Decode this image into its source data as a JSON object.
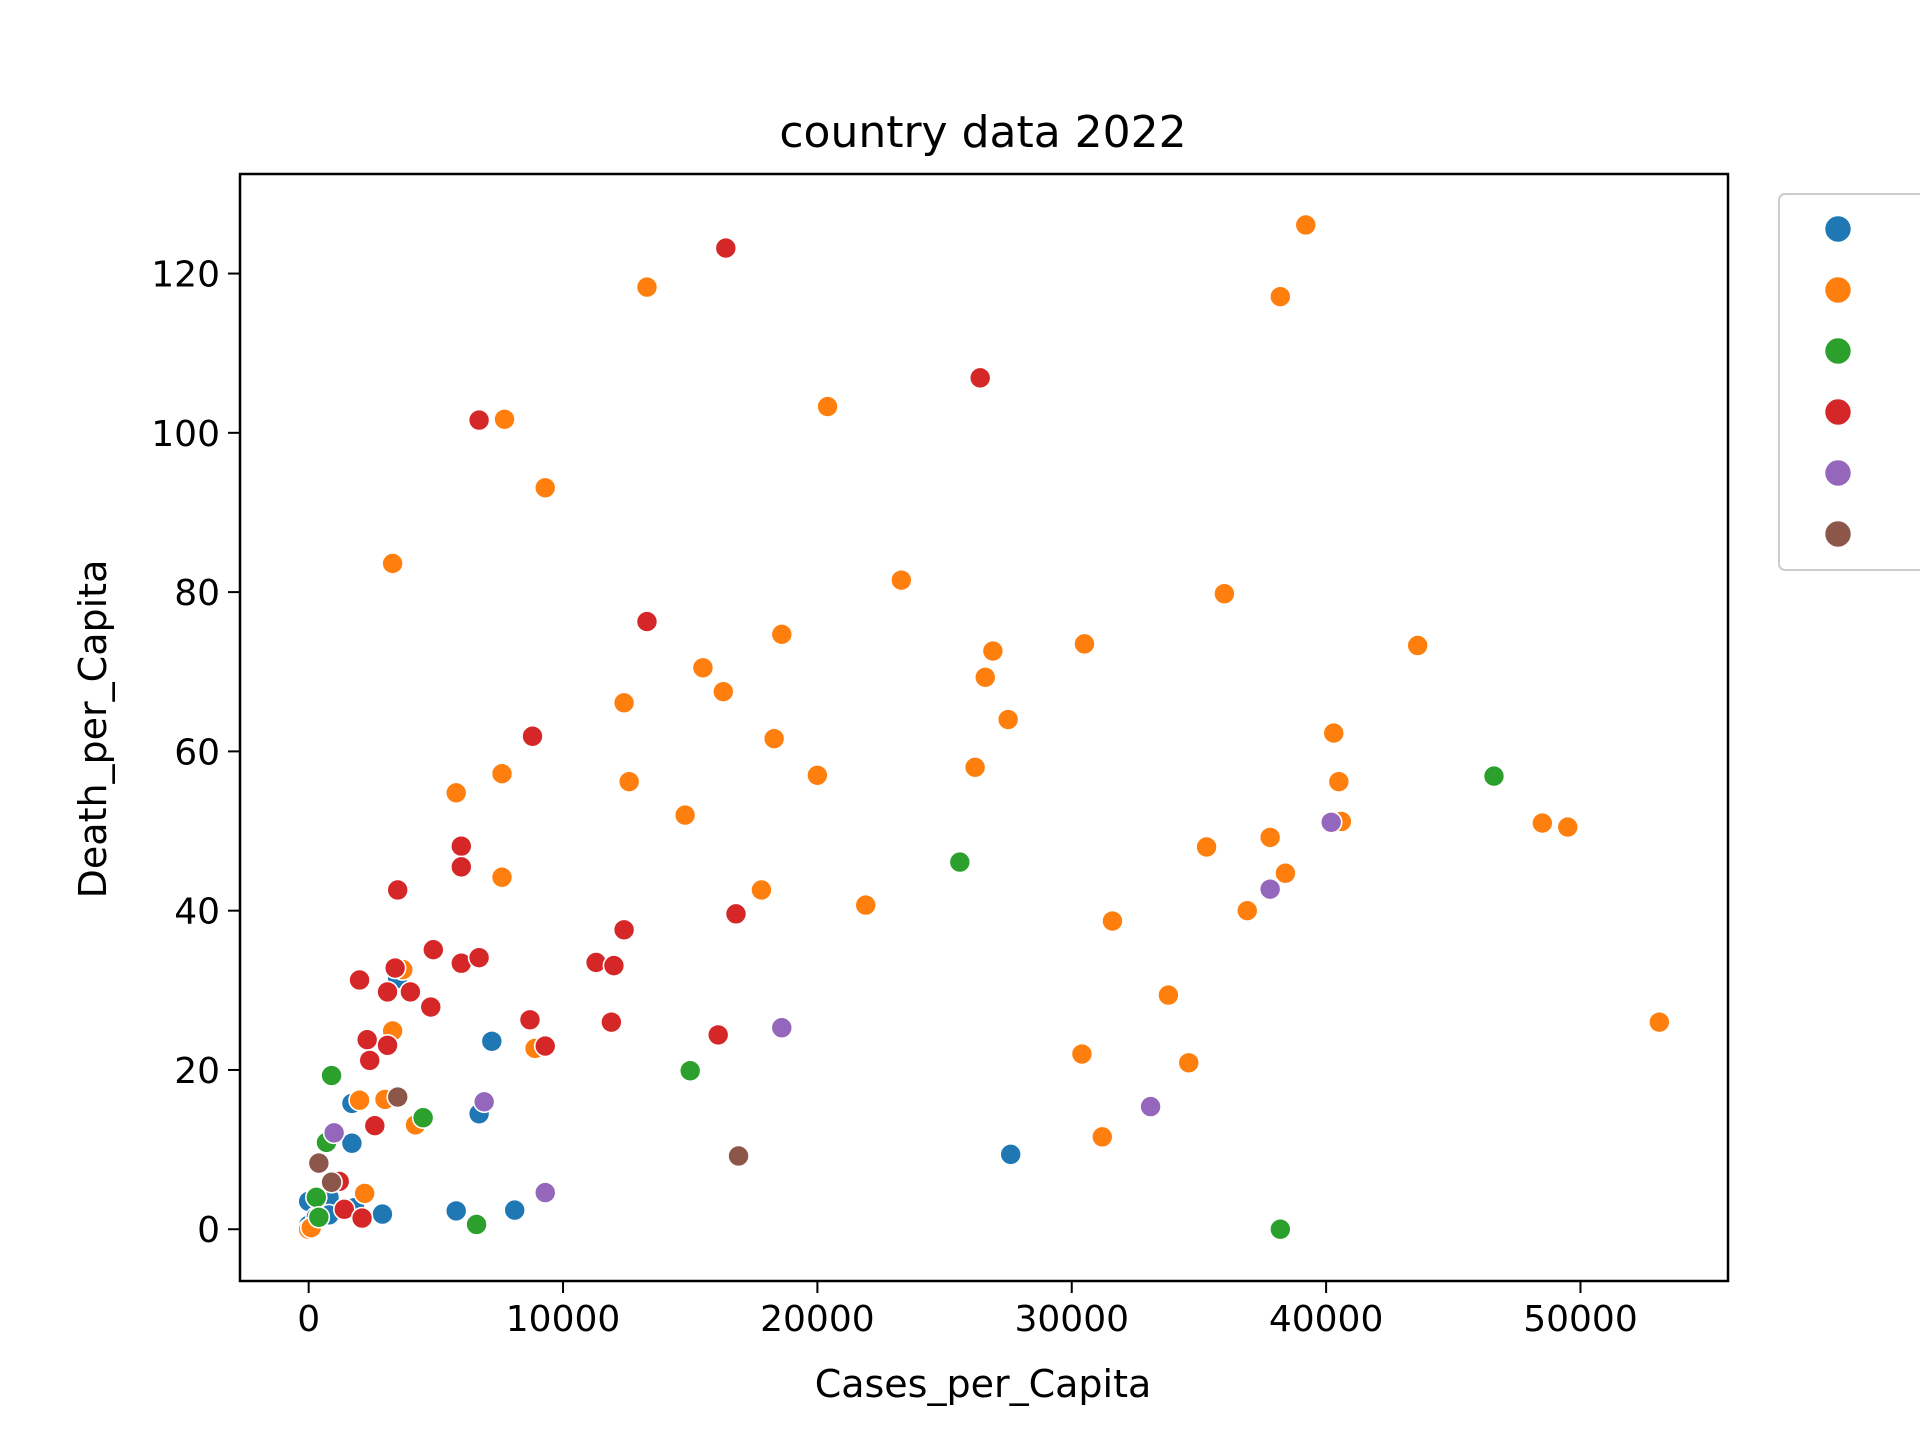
{
  "chart_data": {
    "type": "scatter",
    "title": "country data 2022",
    "xlabel": "Cases_per_Capita",
    "ylabel": "Death_per_Capita",
    "xlim": [
      -2700,
      55800
    ],
    "ylim": [
      -6.5,
      132.5
    ],
    "xticks": [
      0,
      10000,
      20000,
      30000,
      40000,
      50000
    ],
    "yticks": [
      0,
      20,
      40,
      60,
      80,
      100,
      120
    ],
    "grid": false,
    "legend_position": "outside-right",
    "series": [
      {
        "name": "",
        "color": "#1f77b4",
        "points": [
          [
            0,
            3.5
          ],
          [
            0,
            0.5
          ],
          [
            300,
            1.5
          ],
          [
            800,
            4
          ],
          [
            800,
            1.8
          ],
          [
            1700,
            15.8
          ],
          [
            1700,
            10.8
          ],
          [
            1800,
            2.7
          ],
          [
            2900,
            1.9
          ],
          [
            3500,
            31.5
          ],
          [
            5800,
            2.3
          ],
          [
            6700,
            14.5
          ],
          [
            7200,
            23.6
          ],
          [
            8100,
            2.4
          ],
          [
            27600,
            9.4
          ]
        ]
      },
      {
        "name": "",
        "color": "#ff7f0e",
        "points": [
          [
            0,
            0
          ],
          [
            100,
            0.2
          ],
          [
            2000,
            16.2
          ],
          [
            2200,
            4.5
          ],
          [
            3000,
            16.3
          ],
          [
            3300,
            83.6
          ],
          [
            3300,
            24.9
          ],
          [
            3700,
            32.6
          ],
          [
            4200,
            13.1
          ],
          [
            5800,
            54.8
          ],
          [
            7600,
            57.2
          ],
          [
            7600,
            44.2
          ],
          [
            7700,
            101.7
          ],
          [
            8900,
            22.7
          ],
          [
            9300,
            93.1
          ],
          [
            12400,
            66.1
          ],
          [
            12600,
            56.2
          ],
          [
            13300,
            118.3
          ],
          [
            14800,
            52
          ],
          [
            15500,
            70.5
          ],
          [
            16300,
            67.5
          ],
          [
            17800,
            42.6
          ],
          [
            18300,
            61.6
          ],
          [
            18600,
            74.7
          ],
          [
            20000,
            57
          ],
          [
            20400,
            103.3
          ],
          [
            21900,
            40.7
          ],
          [
            23300,
            81.5
          ],
          [
            26200,
            58
          ],
          [
            26600,
            69.3
          ],
          [
            26900,
            72.6
          ],
          [
            27500,
            64
          ],
          [
            30400,
            22
          ],
          [
            30500,
            73.5
          ],
          [
            31200,
            11.6
          ],
          [
            31600,
            38.7
          ],
          [
            33800,
            29.4
          ],
          [
            34600,
            20.9
          ],
          [
            35300,
            48
          ],
          [
            36000,
            79.8
          ],
          [
            36900,
            40
          ],
          [
            37800,
            49.2
          ],
          [
            38200,
            117.1
          ],
          [
            38400,
            44.7
          ],
          [
            39200,
            126.1
          ],
          [
            40300,
            62.3
          ],
          [
            40500,
            56.2
          ],
          [
            40600,
            51.2
          ],
          [
            43600,
            73.3
          ],
          [
            48500,
            51
          ],
          [
            49500,
            50.5
          ],
          [
            53100,
            26
          ]
        ]
      },
      {
        "name": "",
        "color": "#2ca02c",
        "points": [
          [
            300,
            4
          ],
          [
            400,
            1.5
          ],
          [
            700,
            10.9
          ],
          [
            900,
            19.3
          ],
          [
            4500,
            14
          ],
          [
            6600,
            0.6
          ],
          [
            15000,
            19.9
          ],
          [
            25600,
            46.1
          ],
          [
            38200,
            0
          ],
          [
            46600,
            56.9
          ]
        ]
      },
      {
        "name": "",
        "color": "#d62728",
        "points": [
          [
            1200,
            6
          ],
          [
            1400,
            2.5
          ],
          [
            2000,
            31.3
          ],
          [
            2100,
            1.4
          ],
          [
            2300,
            23.8
          ],
          [
            2400,
            21.2
          ],
          [
            2600,
            13
          ],
          [
            3100,
            29.8
          ],
          [
            3100,
            23.1
          ],
          [
            3400,
            32.8
          ],
          [
            3500,
            42.6
          ],
          [
            4000,
            29.8
          ],
          [
            4800,
            27.9
          ],
          [
            4900,
            35.1
          ],
          [
            6000,
            48.1
          ],
          [
            6000,
            45.5
          ],
          [
            6000,
            33.4
          ],
          [
            6700,
            34.1
          ],
          [
            6700,
            101.6
          ],
          [
            8700,
            26.3
          ],
          [
            8800,
            61.9
          ],
          [
            9300,
            23
          ],
          [
            11300,
            33.5
          ],
          [
            11900,
            26
          ],
          [
            12000,
            33.1
          ],
          [
            12400,
            37.6
          ],
          [
            13300,
            76.3
          ],
          [
            16100,
            24.4
          ],
          [
            16400,
            123.2
          ],
          [
            16800,
            39.6
          ],
          [
            26400,
            106.9
          ]
        ]
      },
      {
        "name": "",
        "color": "#9467bd",
        "points": [
          [
            1000,
            12.1
          ],
          [
            6900,
            16
          ],
          [
            9300,
            4.6
          ],
          [
            18600,
            25.3
          ],
          [
            33100,
            15.4
          ],
          [
            37800,
            42.7
          ],
          [
            40200,
            51.1
          ]
        ]
      },
      {
        "name": "",
        "color": "#8c564b",
        "points": [
          [
            400,
            8.3
          ],
          [
            900,
            5.9
          ],
          [
            3500,
            16.6
          ],
          [
            16900,
            9.2
          ]
        ]
      }
    ]
  }
}
